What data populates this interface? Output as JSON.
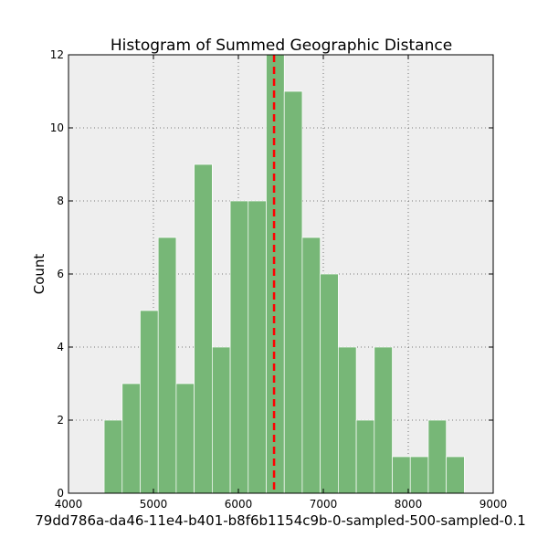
{
  "chart_data": {
    "type": "bar",
    "title": "Histogram of Summed Geographic Distance",
    "xlabel": "79dd786a-da46-11e4-b401-b8f6b1154c9b-0-sampled-500-sampled-0.1",
    "ylabel": "Count",
    "xlim": [
      4000,
      9000
    ],
    "ylim": [
      0,
      12
    ],
    "x_ticks": [
      4000,
      5000,
      6000,
      7000,
      8000,
      9000
    ],
    "y_ticks": [
      0,
      2,
      4,
      6,
      8,
      10,
      12
    ],
    "grid": true,
    "background": "#eeeeee",
    "bar_color": "#77b777",
    "bins": [
      {
        "x0": 4420,
        "x1": 4632,
        "count": 2
      },
      {
        "x0": 4632,
        "x1": 4844,
        "count": 3
      },
      {
        "x0": 4844,
        "x1": 5056,
        "count": 5
      },
      {
        "x0": 5056,
        "x1": 5268,
        "count": 7
      },
      {
        "x0": 5268,
        "x1": 5480,
        "count": 3
      },
      {
        "x0": 5480,
        "x1": 5692,
        "count": 9
      },
      {
        "x0": 5692,
        "x1": 5904,
        "count": 4
      },
      {
        "x0": 5904,
        "x1": 6116,
        "count": 8
      },
      {
        "x0": 6116,
        "x1": 6328,
        "count": 8
      },
      {
        "x0": 6328,
        "x1": 6540,
        "count": 12
      },
      {
        "x0": 6540,
        "x1": 6752,
        "count": 11
      },
      {
        "x0": 6752,
        "x1": 6964,
        "count": 7
      },
      {
        "x0": 6964,
        "x1": 7176,
        "count": 6
      },
      {
        "x0": 7176,
        "x1": 7388,
        "count": 4
      },
      {
        "x0": 7388,
        "x1": 7600,
        "count": 2
      },
      {
        "x0": 7600,
        "x1": 7812,
        "count": 4
      },
      {
        "x0": 7812,
        "x1": 8024,
        "count": 1
      },
      {
        "x0": 8024,
        "x1": 8236,
        "count": 1
      },
      {
        "x0": 8236,
        "x1": 8448,
        "count": 2
      },
      {
        "x0": 8448,
        "x1": 8660,
        "count": 1
      }
    ],
    "reference_line": {
      "x": 6420,
      "color": "#ff0000",
      "style": "dashed"
    }
  }
}
